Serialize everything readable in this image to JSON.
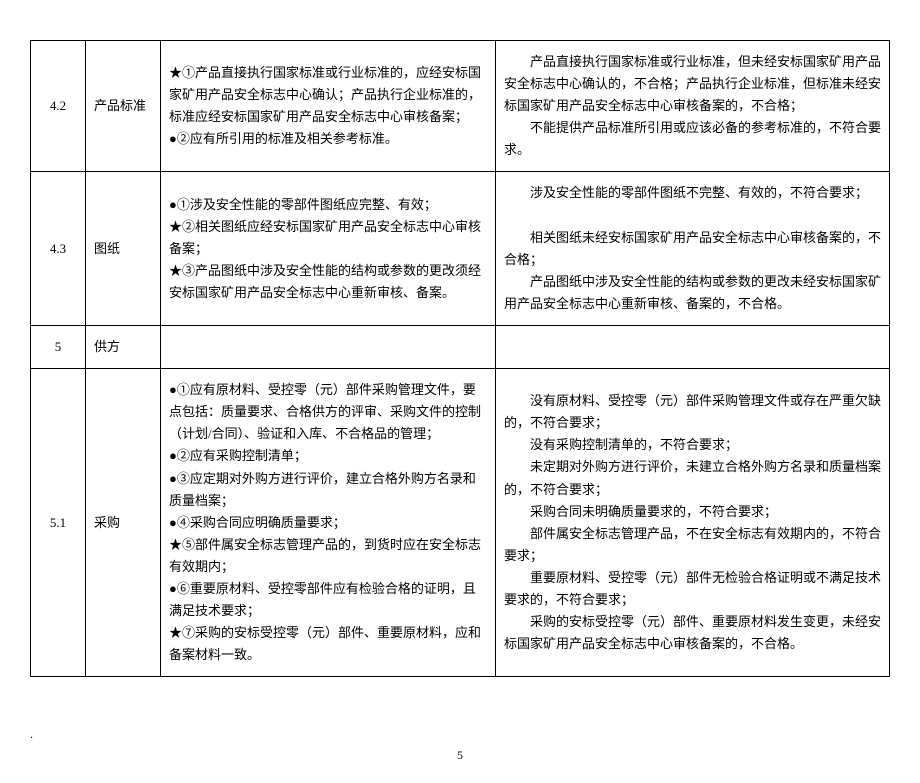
{
  "rows": [
    {
      "id": "4.2",
      "name": "产品标准",
      "c3": [
        "★①产品直接执行国家标准或行业标准的，应经安标国家矿用产品安全标志中心确认；产品执行企业标准的，标准应经安标国家矿用产品安全标志中心审核备案；",
        "●②应有所引用的标准及相关参考标准。"
      ],
      "c4": [
        "产品直接执行国家标准或行业标准，但未经安标国家矿用产品安全标志中心确认的，不合格；产品执行企业标准，但标准未经安标国家矿用产品安全标志中心审核备案的，不合格；",
        "不能提供产品标准所引用或应该必备的参考标准的，不符合要求。"
      ]
    },
    {
      "id": "4.3",
      "name": "图纸",
      "c3": [
        "●①涉及安全性能的零部件图纸应完整、有效；",
        "★②相关图纸应经安标国家矿用产品安全标志中心审核备案；",
        "★③产品图纸中涉及安全性能的结构或参数的更改须经安标国家矿用产品安全标志中心重新审核、备案。"
      ],
      "c4": [
        "涉及安全性能的零部件图纸不完整、有效的，不符合要求；",
        "",
        "相关图纸未经安标国家矿用产品安全标志中心审核备案的，不合格；",
        "产品图纸中涉及安全性能的结构或参数的更改未经安标国家矿用产品安全标志中心重新审核、备案的，不合格。"
      ]
    },
    {
      "id": "5",
      "name": "供方",
      "c3": [],
      "c4": []
    },
    {
      "id": "5.1",
      "name": "采购",
      "c3": [
        "●①应有原材料、受控零（元）部件采购管理文件，要点包括：质量要求、合格供方的评审、采购文件的控制（计划/合同）、验证和入库、不合格品的管理；",
        "●②应有采购控制清单；",
        "●③应定期对外购方进行评价，建立合格外购方名录和质量档案；",
        "●④采购合同应明确质量要求；",
        "★⑤部件属安全标志管理产品的，到货时应在安全标志有效期内；",
        "●⑥重要原材料、受控零部件应有检验合格的证明，且满足技术要求；",
        "★⑦采购的安标受控零（元）部件、重要原材料，应和备案材料一致。"
      ],
      "c4": [
        "没有原材料、受控零（元）部件采购管理文件或存在严重欠缺的，不符合要求；",
        "没有采购控制清单的，不符合要求；",
        "未定期对外购方进行评价，未建立合格外购方名录和质量档案的，不符合要求；",
        "采购合同未明确质量要求的，不符合要求；",
        "部件属安全标志管理产品，不在安全标志有效期内的，不符合要求；",
        "重要原材料、受控零（元）部件无检验合格证明或不满足技术要求的，不符合要求；",
        "采购的安标受控零（元）部件、重要原材料发生变更，未经安标国家矿用产品安全标志中心审核备案的，不合格。"
      ]
    }
  ],
  "footer_dot": ".",
  "page_number": "5"
}
